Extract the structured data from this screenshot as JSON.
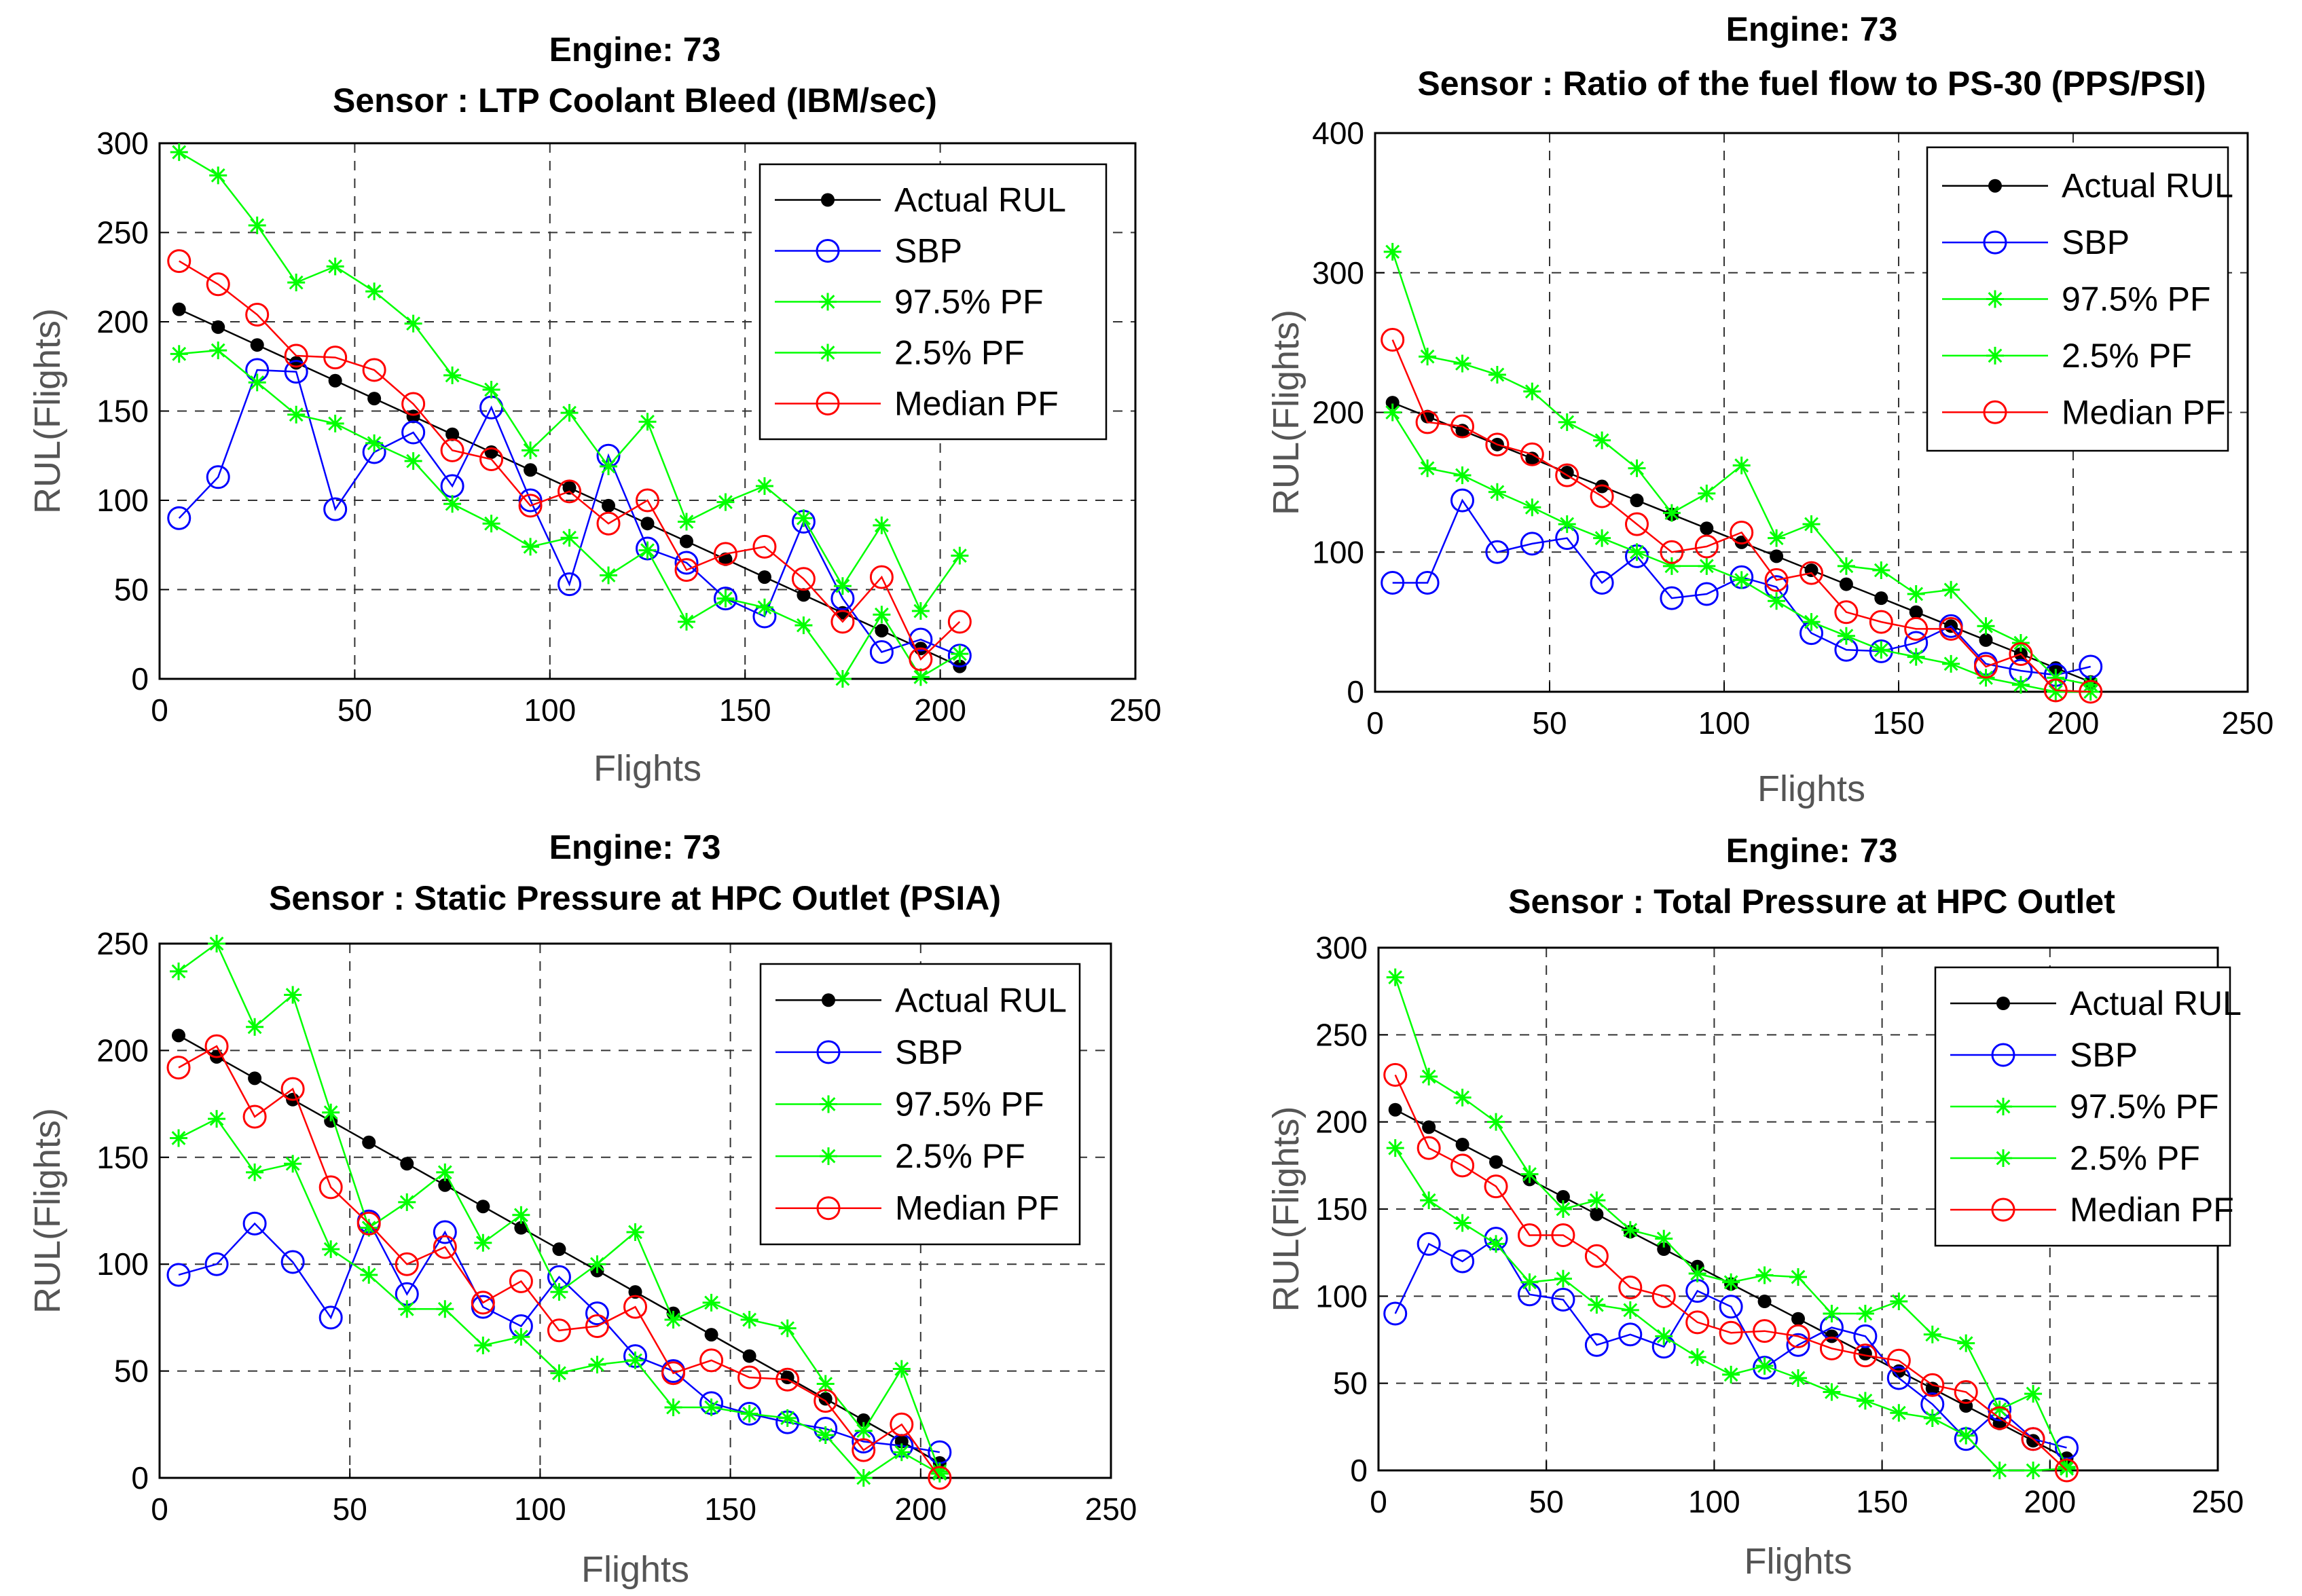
{
  "chart_data": [
    {
      "type": "line",
      "title": "Engine: 73",
      "subtitle": "Sensor : LTP Coolant Bleed (IBM/sec)",
      "xlabel": "Flights",
      "ylabel": "RUL(Flights)",
      "xlim": [
        0,
        250
      ],
      "ylim": [
        0,
        300
      ],
      "xticks": [
        0,
        50,
        100,
        150,
        200,
        250
      ],
      "yticks": [
        0,
        50,
        100,
        150,
        200,
        250,
        300
      ],
      "grid": true,
      "legend_position": "top-right",
      "x": [
        5,
        15,
        25,
        35,
        45,
        55,
        65,
        75,
        85,
        95,
        105,
        115,
        125,
        135,
        145,
        155,
        165,
        175,
        185,
        195,
        205
      ],
      "series": [
        {
          "name": "Actual RUL",
          "color": "#000000",
          "marker": "dot",
          "values": [
            207,
            197,
            187,
            177,
            167,
            157,
            147,
            137,
            127,
            117,
            107,
            97,
            87,
            77,
            67,
            57,
            47,
            37,
            27,
            17,
            7
          ]
        },
        {
          "name": "SBP",
          "color": "#0000ff",
          "marker": "circle",
          "values": [
            90,
            113,
            173,
            172,
            95,
            127,
            138,
            108,
            152,
            100,
            53,
            125,
            73,
            65,
            45,
            35,
            88,
            45,
            15,
            22,
            13
          ]
        },
        {
          "name": "97.5% PF",
          "color": "#00ff00",
          "marker": "star",
          "values": [
            295,
            282,
            254,
            222,
            231,
            217,
            199,
            170,
            162,
            128,
            149,
            119,
            144,
            88,
            99,
            108,
            90,
            52,
            86,
            38,
            69
          ]
        },
        {
          "name": "2.5% PF",
          "color": "#00ff00",
          "marker": "star",
          "values": [
            182,
            184,
            166,
            148,
            143,
            132,
            122,
            98,
            87,
            74,
            79,
            58,
            72,
            32,
            45,
            40,
            30,
            0,
            36,
            1,
            14
          ]
        },
        {
          "name": "Median PF",
          "color": "#ff0000",
          "marker": "circle",
          "values": [
            234,
            221,
            204,
            181,
            180,
            173,
            154,
            128,
            123,
            97,
            105,
            87,
            100,
            61,
            70,
            74,
            56,
            32,
            57,
            11,
            32
          ]
        }
      ]
    },
    {
      "type": "line",
      "title": "Engine: 73",
      "subtitle": "Sensor : Ratio of the fuel flow to PS-30 (PPS/PSI)",
      "xlabel": "Flights",
      "ylabel": "RUL(Flights)",
      "xlim": [
        0,
        250
      ],
      "ylim": [
        0,
        400
      ],
      "xticks": [
        0,
        50,
        100,
        150,
        200,
        250
      ],
      "yticks": [
        0,
        100,
        200,
        300,
        400
      ],
      "grid": true,
      "legend_position": "top-right",
      "x": [
        5,
        15,
        25,
        35,
        45,
        55,
        65,
        75,
        85,
        95,
        105,
        115,
        125,
        135,
        145,
        155,
        165,
        175,
        185,
        195,
        205
      ],
      "series": [
        {
          "name": "Actual RUL",
          "color": "#000000",
          "marker": "dot",
          "values": [
            207,
            197,
            187,
            177,
            167,
            157,
            147,
            137,
            127,
            117,
            107,
            97,
            87,
            77,
            67,
            57,
            47,
            37,
            27,
            17,
            7
          ]
        },
        {
          "name": "SBP",
          "color": "#0000ff",
          "marker": "circle",
          "values": [
            78,
            78,
            137,
            100,
            106,
            110,
            78,
            97,
            67,
            70,
            82,
            75,
            42,
            30,
            29,
            35,
            47,
            20,
            15,
            12,
            18
          ]
        },
        {
          "name": "97.5% PF",
          "color": "#00ff00",
          "marker": "star",
          "values": [
            315,
            240,
            235,
            227,
            215,
            193,
            180,
            160,
            128,
            142,
            162,
            110,
            120,
            90,
            87,
            70,
            73,
            47,
            35,
            10,
            5
          ]
        },
        {
          "name": "2.5% PF",
          "color": "#00ff00",
          "marker": "star",
          "values": [
            200,
            160,
            155,
            143,
            132,
            120,
            110,
            100,
            90,
            90,
            80,
            65,
            50,
            40,
            30,
            25,
            20,
            10,
            5,
            0,
            0
          ]
        },
        {
          "name": "Median PF",
          "color": "#ff0000",
          "marker": "circle",
          "values": [
            252,
            193,
            190,
            177,
            170,
            155,
            140,
            120,
            100,
            104,
            114,
            80,
            85,
            57,
            50,
            45,
            45,
            18,
            27,
            1,
            0
          ]
        }
      ]
    },
    {
      "type": "line",
      "title": "Engine: 73",
      "subtitle": "Sensor : Static Pressure at HPC Outlet (PSIA)",
      "xlabel": "Flights",
      "ylabel": "RUL(Flights)",
      "xlim": [
        0,
        250
      ],
      "ylim": [
        0,
        250
      ],
      "xticks": [
        0,
        50,
        100,
        150,
        200,
        250
      ],
      "yticks": [
        0,
        50,
        100,
        150,
        200,
        250
      ],
      "grid": true,
      "legend_position": "top-right",
      "x": [
        5,
        15,
        25,
        35,
        45,
        55,
        65,
        75,
        85,
        95,
        105,
        115,
        125,
        135,
        145,
        155,
        165,
        175,
        185,
        195,
        205
      ],
      "series": [
        {
          "name": "Actual RUL",
          "color": "#000000",
          "marker": "dot",
          "values": [
            207,
            197,
            187,
            177,
            167,
            157,
            147,
            137,
            127,
            117,
            107,
            97,
            87,
            77,
            67,
            57,
            47,
            37,
            27,
            17,
            7
          ]
        },
        {
          "name": "SBP",
          "color": "#0000ff",
          "marker": "circle",
          "values": [
            95,
            100,
            119,
            101,
            75,
            120,
            86,
            115,
            80,
            71,
            94,
            77,
            57,
            50,
            35,
            30,
            26,
            23,
            17,
            15,
            12
          ]
        },
        {
          "name": "97.5% PF",
          "color": "#00ff00",
          "marker": "star",
          "values": [
            237,
            250,
            211,
            226,
            171,
            117,
            129,
            143,
            110,
            123,
            87,
            100,
            115,
            74,
            82,
            74,
            70,
            44,
            22,
            51,
            3
          ]
        },
        {
          "name": "2.5% PF",
          "color": "#00ff00",
          "marker": "star",
          "values": [
            159,
            168,
            143,
            147,
            107,
            95,
            79,
            79,
            62,
            66,
            49,
            53,
            55,
            33,
            33,
            30,
            28,
            20,
            0,
            12,
            2
          ]
        },
        {
          "name": "Median PF",
          "color": "#ff0000",
          "marker": "circle",
          "values": [
            192,
            202,
            169,
            182,
            136,
            119,
            100,
            108,
            82,
            92,
            69,
            71,
            80,
            49,
            55,
            47,
            46,
            36,
            13,
            25,
            0
          ]
        }
      ]
    },
    {
      "type": "line",
      "title": "Engine: 73",
      "subtitle": "Sensor : Total Pressure at HPC Outlet",
      "xlabel": "Flights",
      "ylabel": "RUL(Flights)",
      "xlim": [
        0,
        250
      ],
      "ylim": [
        0,
        300
      ],
      "xticks": [
        0,
        50,
        100,
        150,
        200,
        250
      ],
      "yticks": [
        0,
        50,
        100,
        150,
        200,
        250,
        300
      ],
      "grid": true,
      "legend_position": "top-right",
      "x": [
        5,
        15,
        25,
        35,
        45,
        55,
        65,
        75,
        85,
        95,
        105,
        115,
        125,
        135,
        145,
        155,
        165,
        175,
        185,
        195,
        205
      ],
      "series": [
        {
          "name": "Actual RUL",
          "color": "#000000",
          "marker": "dot",
          "values": [
            207,
            197,
            187,
            177,
            167,
            157,
            147,
            137,
            127,
            117,
            107,
            97,
            87,
            77,
            67,
            57,
            47,
            37,
            27,
            17,
            7
          ]
        },
        {
          "name": "SBP",
          "color": "#0000ff",
          "marker": "circle",
          "values": [
            90,
            130,
            120,
            133,
            101,
            98,
            72,
            78,
            71,
            103,
            94,
            59,
            72,
            82,
            77,
            53,
            38,
            18,
            35,
            18,
            13
          ]
        },
        {
          "name": "97.5% PF",
          "color": "#00ff00",
          "marker": "star",
          "values": [
            283,
            226,
            214,
            200,
            170,
            150,
            155,
            138,
            133,
            113,
            108,
            112,
            111,
            90,
            90,
            97,
            78,
            73,
            35,
            44,
            2
          ]
        },
        {
          "name": "2.5% PF",
          "color": "#00ff00",
          "marker": "star",
          "values": [
            185,
            155,
            142,
            130,
            108,
            110,
            95,
            92,
            77,
            65,
            55,
            60,
            53,
            45,
            40,
            33,
            30,
            20,
            0,
            0,
            1
          ]
        },
        {
          "name": "Median PF",
          "color": "#ff0000",
          "marker": "circle",
          "values": [
            227,
            185,
            175,
            163,
            135,
            135,
            123,
            105,
            100,
            85,
            79,
            80,
            77,
            70,
            66,
            63,
            49,
            45,
            30,
            18,
            0
          ]
        }
      ]
    }
  ]
}
